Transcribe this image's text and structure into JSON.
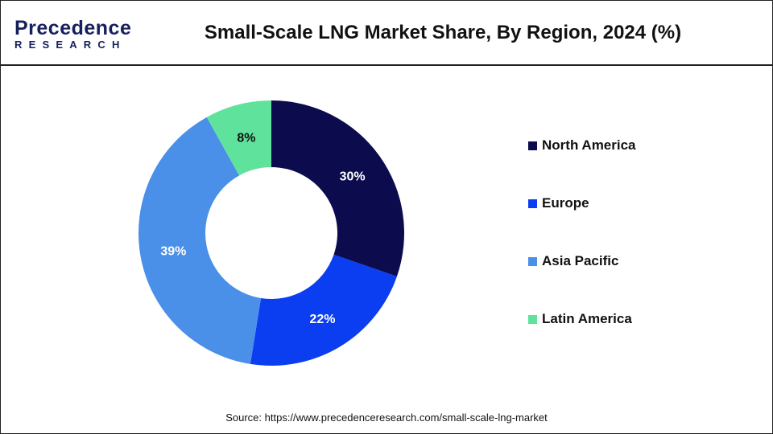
{
  "logo": {
    "main": "Precedence",
    "sub": "RESEARCH"
  },
  "chart_data": {
    "type": "pie",
    "variant": "donut",
    "title": "Small-Scale LNG Market Share, By Region, 2024 (%)",
    "categories": [
      "North America",
      "Europe",
      "Asia Pacific",
      "Latin America"
    ],
    "values": [
      30,
      22,
      39,
      8
    ],
    "labels": [
      "30%",
      "22%",
      "39%",
      "8%"
    ],
    "colors": [
      "#0b0b4d",
      "#0b3ef0",
      "#4a8fe8",
      "#5fe39c"
    ],
    "label_colors": [
      "#ffffff",
      "#ffffff",
      "#ffffff",
      "#111111"
    ],
    "legend_position": "right"
  },
  "source": "Source: https://www.precedenceresearch.com/small-scale-lng-market"
}
